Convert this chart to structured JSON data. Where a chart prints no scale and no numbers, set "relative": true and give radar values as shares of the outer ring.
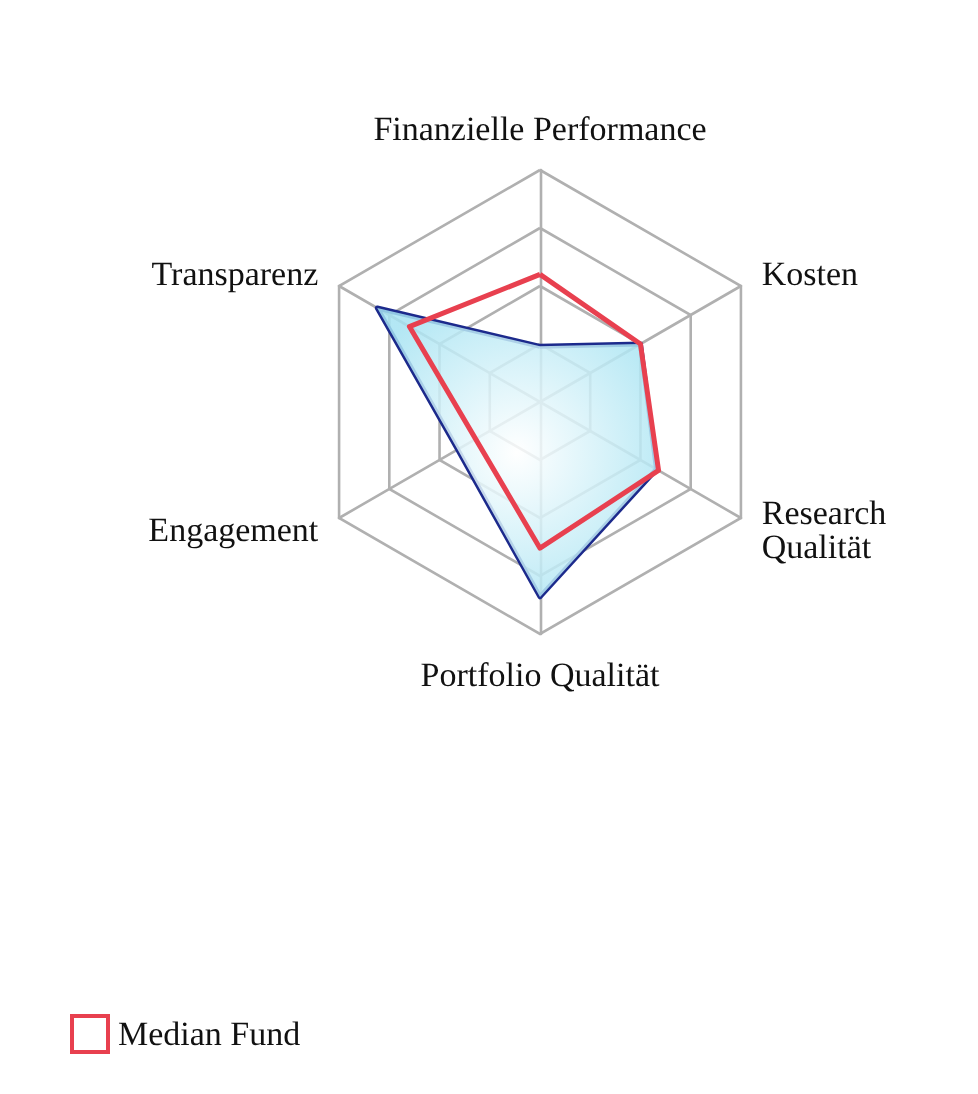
{
  "chart_data": {
    "type": "radar",
    "relative": true,
    "categories": [
      "Finanzielle Performance",
      "Kosten",
      "Research Qualität",
      "Portfolio Qualität",
      "Engagement",
      "Transparenz"
    ],
    "series": [
      {
        "color": "#1c2a8c",
        "values": [
          0.24,
          0.5,
          0.58,
          0.84,
          0.41,
          0.81
        ]
      },
      {
        "name": "Median Fund",
        "color": "#e8404f",
        "values": [
          0.55,
          0.5,
          0.59,
          0.63,
          0.32,
          0.65
        ]
      }
    ],
    "legend": "bottom left"
  }
}
